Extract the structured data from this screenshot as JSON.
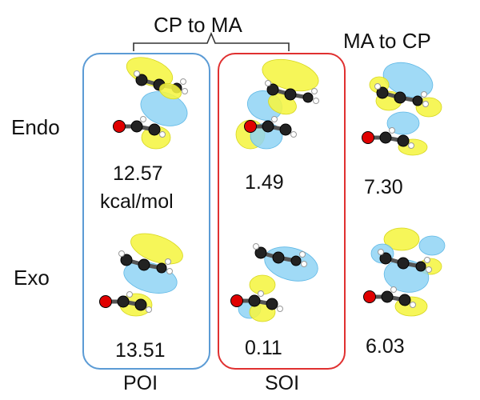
{
  "headers": {
    "cp_to_ma": "CP to MA",
    "ma_to_cp": "MA to CP"
  },
  "rows": {
    "endo": "Endo",
    "exo": "Exo"
  },
  "values": {
    "endo_poi": "12.57",
    "endo_poi_unit": "kcal/mol",
    "endo_soi": "1.49",
    "endo_ma_to_cp": "7.30",
    "exo_poi": "13.51",
    "exo_soi": "0.11",
    "exo_ma_to_cp": "6.03"
  },
  "footers": {
    "poi": "POI",
    "soi": "SOI"
  },
  "colors": {
    "poi_box": "#5b9bd5",
    "soi_box": "#e03030",
    "lobe_yellow": "#f5f542",
    "lobe_blue": "#8fd3f5",
    "carbon": "#222222",
    "oxygen": "#e00000",
    "hydrogen": "#ffffff"
  }
}
